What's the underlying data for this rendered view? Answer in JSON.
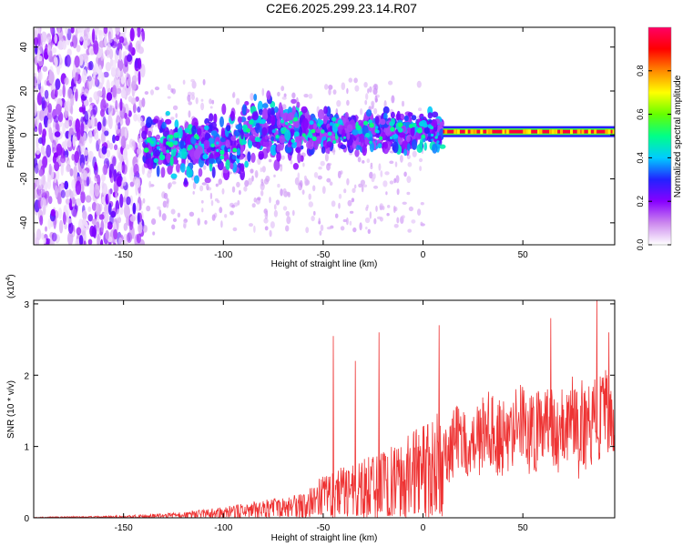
{
  "title": "C2E6.2025.299.23.14.R07",
  "chart_data": [
    {
      "type": "heatmap",
      "title": "C2E6.2025.299.23.14.R07",
      "xlabel": "Height of straight line (km)",
      "ylabel": "Frequency (Hz)",
      "xlim": [
        -195,
        96
      ],
      "ylim": [
        -50,
        49
      ],
      "xticks": [
        -150,
        -100,
        -50,
        0,
        50
      ],
      "yticks": [
        -40,
        -20,
        0,
        20,
        40
      ],
      "colorbar": {
        "label": "Normalized spectral amplitude",
        "range": [
          0,
          1
        ],
        "ticks": [
          0.0,
          0.2,
          0.4,
          0.6,
          0.8
        ],
        "colors": [
          "#ffffff",
          "#cc88ee",
          "#8800ff",
          "#2222ff",
          "#00ccff",
          "#00ff88",
          "#66ff00",
          "#ffff00",
          "#ff8800",
          "#ff0000",
          "#ff0066"
        ]
      },
      "features": [
        {
          "name": "scattered noise",
          "x_range": [
            -195,
            -140
          ],
          "freq_range": [
            -50,
            49
          ],
          "amplitude": 0.15
        },
        {
          "name": "broadband band",
          "x_range": [
            -140,
            10
          ],
          "freq_range": [
            -20,
            15
          ],
          "amplitude": 0.25
        },
        {
          "name": "stable tone",
          "x_range": [
            10,
            96
          ],
          "freq": 1.5,
          "amplitude": 0.95
        }
      ]
    },
    {
      "type": "line",
      "xlabel": "Height of straight line (km)",
      "ylabel": "SNR (10 * v/v)",
      "exponent_label": "(x10",
      "exponent_value": "4",
      "exponent_close": ")",
      "xlim": [
        -195,
        96
      ],
      "ylim": [
        0,
        3.05
      ],
      "xticks": [
        -150,
        -100,
        -50,
        0,
        50
      ],
      "yticks": [
        0,
        1,
        2,
        3
      ],
      "color": "#ee3333",
      "envelope": {
        "x": [
          -195,
          -150,
          -120,
          -100,
          -80,
          -60,
          -50,
          -40,
          -30,
          -20,
          -10,
          0,
          10,
          20,
          30,
          40,
          50,
          60,
          70,
          80,
          90,
          96
        ],
        "y": [
          0.01,
          0.03,
          0.08,
          0.15,
          0.25,
          0.35,
          0.6,
          0.75,
          0.85,
          0.95,
          1.15,
          1.3,
          1.55,
          1.7,
          1.85,
          1.95,
          2.0,
          2.05,
          2.1,
          2.15,
          2.2,
          2.2
        ]
      },
      "peaks": [
        {
          "x": -45,
          "y": 2.55
        },
        {
          "x": -34,
          "y": 2.2
        },
        {
          "x": -22,
          "y": 2.6
        },
        {
          "x": 8,
          "y": 2.7
        },
        {
          "x": 64,
          "y": 2.8
        },
        {
          "x": 87,
          "y": 3.05
        },
        {
          "x": 93,
          "y": 2.6
        }
      ],
      "dips": [
        {
          "x": 78,
          "y": 0.55
        }
      ]
    }
  ]
}
